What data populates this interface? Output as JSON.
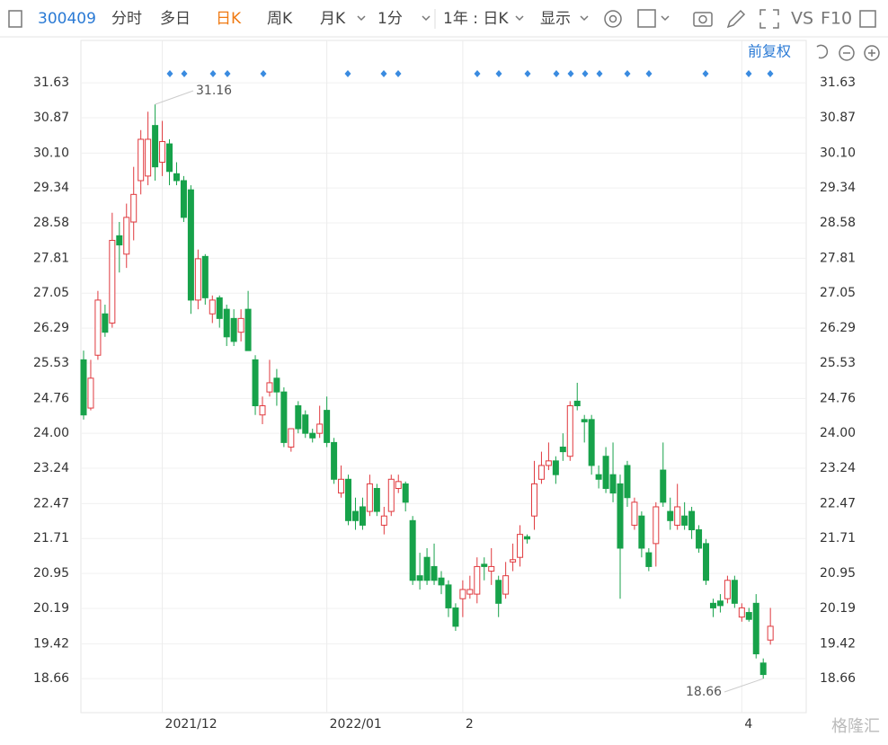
{
  "toolbar": {
    "code": "300409",
    "tabs": [
      "分时",
      "多日",
      "日K",
      "周K",
      "月K",
      "1分"
    ],
    "range": "1年 : 日K",
    "display": "显示",
    "vs": "VS",
    "f10": "F10",
    "adjust": "前复权"
  },
  "watermark": "格隆汇",
  "chart_data": {
    "type": "candlestick",
    "categories": [
      null,
      null,
      null,
      null,
      null,
      null,
      null,
      null,
      null,
      null,
      null,
      "2021/12",
      null,
      null,
      null,
      null,
      null,
      null,
      null,
      null,
      null,
      null,
      null,
      null,
      null,
      null,
      null,
      null,
      null,
      null,
      null,
      null,
      null,
      null,
      "2022/01",
      null,
      null,
      null,
      null,
      null,
      null,
      null,
      null,
      null,
      null,
      null,
      null,
      null,
      null,
      null,
      null,
      null,
      null,
      "2",
      null,
      null,
      null,
      null,
      null,
      null,
      null,
      null,
      null,
      null,
      null,
      null,
      null,
      null,
      null,
      null,
      null,
      null,
      null,
      null,
      null,
      null,
      null,
      null,
      null,
      null,
      null,
      null,
      null,
      null,
      null,
      null,
      null,
      null,
      null,
      null,
      null,
      null,
      "4",
      null,
      null,
      null,
      null
    ],
    "open": [
      25.6,
      24.55,
      25.7,
      26.6,
      26.4,
      28.3,
      27.9,
      28.6,
      29.5,
      29.6,
      30.7,
      29.9,
      30.3,
      29.65,
      29.5,
      29.3,
      26.9,
      27.85,
      26.6,
      26.95,
      26.7,
      26.5,
      26.2,
      26.7,
      25.6,
      24.4,
      24.9,
      25.2,
      24.9,
      23.7,
      24.6,
      24.4,
      24.0,
      24.0,
      24.5,
      23.8,
      22.7,
      23.0,
      22.3,
      22.4,
      22.3,
      22.8,
      22.0,
      22.3,
      22.8,
      22.9,
      22.1,
      20.9,
      21.3,
      21.1,
      20.85,
      20.7,
      20.2,
      20.4,
      20.5,
      20.5,
      21.15,
      21.0,
      20.8,
      20.5,
      21.2,
      21.3,
      21.75,
      22.2,
      23.0,
      23.3,
      23.4,
      23.7,
      23.5,
      24.7,
      24.3,
      24.3,
      23.1,
      23.5,
      23.1,
      22.9,
      23.3,
      22.0,
      22.2,
      21.4,
      21.6,
      23.2,
      22.3,
      22.0,
      22.2,
      22.3,
      21.9,
      21.6,
      20.3,
      20.35,
      20.4,
      20.8,
      20.0,
      20.1,
      20.3,
      19.0,
      19.5
    ],
    "high": [
      25.8,
      25.6,
      27.1,
      26.8,
      28.8,
      28.6,
      29.0,
      29.8,
      30.6,
      31.0,
      31.16,
      30.8,
      30.4,
      29.9,
      29.6,
      29.4,
      28.0,
      27.9,
      27.0,
      27.0,
      26.8,
      26.7,
      26.7,
      27.1,
      25.7,
      24.8,
      25.6,
      25.4,
      25.0,
      24.1,
      24.7,
      24.5,
      24.1,
      24.6,
      24.8,
      23.9,
      23.3,
      23.1,
      22.6,
      22.6,
      23.1,
      22.9,
      22.4,
      23.1,
      23.1,
      22.95,
      22.2,
      21.4,
      21.5,
      21.6,
      21.0,
      20.8,
      20.3,
      20.8,
      20.9,
      21.3,
      21.3,
      21.5,
      20.9,
      21.2,
      21.6,
      22.0,
      21.8,
      23.4,
      23.6,
      23.8,
      23.5,
      24.0,
      24.7,
      25.1,
      24.4,
      24.4,
      23.3,
      23.7,
      23.8,
      23.1,
      23.4,
      22.6,
      22.3,
      21.5,
      22.5,
      23.8,
      22.6,
      22.9,
      22.5,
      22.4,
      22.0,
      21.7,
      20.4,
      20.5,
      20.9,
      20.9,
      20.3,
      20.2,
      20.5,
      19.1,
      20.2
    ],
    "low": [
      24.3,
      24.5,
      25.6,
      26.1,
      26.3,
      27.5,
      27.6,
      28.2,
      29.2,
      29.4,
      29.5,
      29.6,
      29.4,
      29.4,
      28.6,
      26.6,
      26.7,
      26.8,
      26.4,
      26.3,
      25.9,
      25.9,
      26.0,
      25.8,
      24.4,
      24.2,
      24.8,
      24.6,
      23.7,
      23.6,
      24.0,
      23.9,
      23.8,
      23.9,
      23.7,
      22.9,
      22.6,
      22.0,
      21.9,
      21.9,
      22.2,
      22.2,
      21.8,
      22.2,
      22.7,
      22.3,
      20.7,
      20.6,
      20.7,
      20.7,
      20.5,
      20.0,
      19.7,
      20.0,
      20.4,
      20.3,
      20.8,
      20.7,
      20.0,
      20.4,
      21.0,
      21.1,
      21.6,
      21.9,
      22.9,
      23.2,
      22.9,
      23.4,
      23.4,
      24.5,
      23.8,
      23.1,
      22.8,
      22.7,
      22.5,
      20.4,
      22.4,
      21.9,
      21.3,
      21.0,
      21.1,
      22.4,
      21.9,
      21.9,
      21.9,
      21.7,
      21.4,
      20.7,
      20.0,
      20.1,
      20.3,
      20.2,
      19.9,
      19.9,
      19.1,
      18.66,
      19.4
    ],
    "close": [
      24.4,
      25.2,
      26.9,
      26.2,
      28.2,
      28.1,
      28.7,
      29.2,
      30.4,
      30.4,
      29.8,
      30.35,
      29.7,
      29.5,
      28.7,
      26.9,
      27.8,
      26.95,
      26.9,
      26.5,
      26.1,
      26.0,
      26.5,
      25.8,
      24.6,
      24.6,
      25.1,
      24.9,
      23.8,
      24.1,
      24.1,
      24.0,
      23.9,
      24.2,
      23.8,
      23.0,
      23.0,
      22.1,
      22.1,
      22.0,
      22.9,
      22.3,
      22.2,
      23.0,
      22.95,
      22.5,
      20.8,
      20.8,
      20.8,
      20.8,
      20.7,
      20.2,
      19.8,
      20.6,
      20.6,
      21.1,
      21.1,
      21.1,
      20.3,
      20.9,
      21.25,
      21.8,
      21.7,
      22.9,
      23.3,
      23.4,
      23.1,
      23.6,
      24.6,
      24.6,
      24.25,
      23.3,
      23.0,
      22.8,
      22.7,
      21.5,
      22.6,
      22.5,
      21.5,
      21.1,
      22.4,
      22.5,
      22.1,
      22.4,
      22.0,
      21.9,
      21.5,
      20.8,
      20.2,
      20.25,
      20.8,
      20.3,
      20.2,
      19.95,
      19.2,
      18.75,
      19.8
    ],
    "up_color": "#e0393e",
    "down_color": "#17a24a",
    "annotations": [
      "31.16",
      "18.66"
    ],
    "ylim": [
      17.92,
      32.61
    ],
    "yticks": [
      31.63,
      30.87,
      {
        "value": 30.1,
        "label": "30.10"
      },
      29.34,
      28.58,
      27.81,
      27.05,
      26.29,
      25.53,
      24.76,
      {
        "value": 24,
        "label": "24.00"
      },
      23.24,
      22.47,
      21.71,
      20.95,
      20.19,
      19.42,
      18.66
    ],
    "grid": true
  }
}
